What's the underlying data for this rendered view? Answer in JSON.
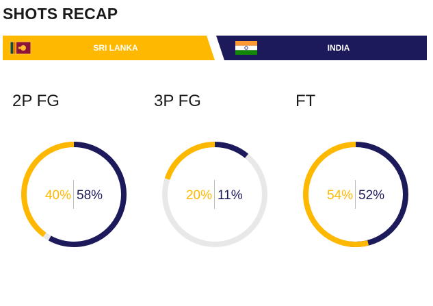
{
  "page": {
    "title": "SHOTS RECAP"
  },
  "teams": {
    "home": {
      "name": "SRI LANKA",
      "flag": "sri-lanka-flag",
      "color": "#ffb800"
    },
    "away": {
      "name": "INDIA",
      "flag": "india-flag",
      "color": "#1c1a5a"
    }
  },
  "colors": {
    "track": "#e8e8e8",
    "home": "#ffb800",
    "away": "#1c1a5a"
  },
  "stats": [
    {
      "label": "2P FG",
      "home_text": "40%",
      "away_text": "58%",
      "home": 40,
      "away": 58
    },
    {
      "label": "3P FG",
      "home_text": "20%",
      "away_text": "11%",
      "home": 20,
      "away": 11
    },
    {
      "label": "FT",
      "home_text": "54%",
      "away_text": "52%",
      "home": 54,
      "away": 52
    }
  ]
}
